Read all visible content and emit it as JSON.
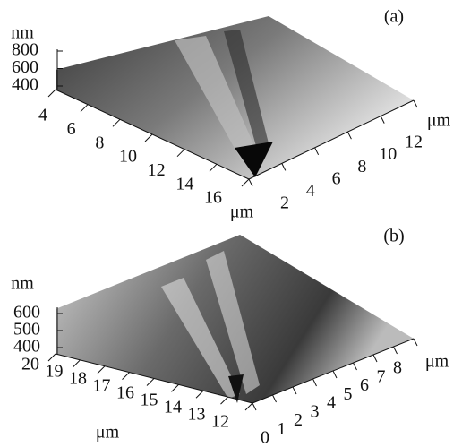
{
  "panels": [
    {
      "label": "(a)",
      "z_unit": "nm",
      "z_ticks": [
        800,
        600,
        400
      ],
      "left_unit": "μm",
      "left_ticks": [
        4,
        6,
        8,
        10,
        12,
        14,
        16
      ],
      "right_unit": "μm",
      "right_ticks": [
        2,
        4,
        6,
        8,
        10,
        12
      ]
    },
    {
      "label": "(b)",
      "z_unit": "nm",
      "z_ticks": [
        600,
        500,
        400
      ],
      "left_unit": "μm",
      "left_ticks": [
        20,
        19,
        18,
        17,
        16,
        15,
        14,
        13,
        12
      ],
      "right_unit": "μm",
      "right_ticks": [
        0,
        1,
        2,
        3,
        4,
        5,
        6,
        7,
        8
      ]
    }
  ]
}
